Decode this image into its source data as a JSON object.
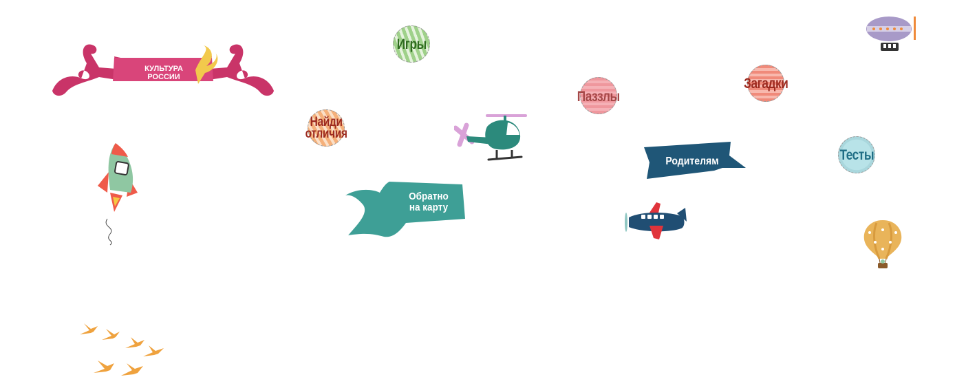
{
  "logo": {
    "line1": "КУЛЬТУРА",
    "line2": "РОССИИ"
  },
  "menu": {
    "games": {
      "label": "Игры",
      "color": "#2e6b1f"
    },
    "puzzles": {
      "label": "Паззлы",
      "color": "#a54747"
    },
    "riddles": {
      "label": "Загадки",
      "color": "#9c2a1f"
    },
    "tests": {
      "label": "Тесты",
      "color": "#1f6e85"
    },
    "find_differences": {
      "line1": "Найди",
      "line2": "отличия",
      "color": "#9c2a1f"
    }
  },
  "banners": {
    "parents": {
      "label": "Родителям"
    },
    "back_to_map": {
      "line1": "Обратно",
      "line2": "на карту"
    }
  },
  "colors": {
    "logo_ribbon": "#d9457a",
    "parents_banner": "#1f5677",
    "back_banner": "#3e9f96",
    "helicopter": "#2c8a7c",
    "airplane": "#204e73",
    "rocket_body": "#8fc7a2",
    "rocket_fin": "#ef5b4a",
    "birds": "#efa23e",
    "balloon": "#e9b45a",
    "airship": "#a89ac8"
  }
}
